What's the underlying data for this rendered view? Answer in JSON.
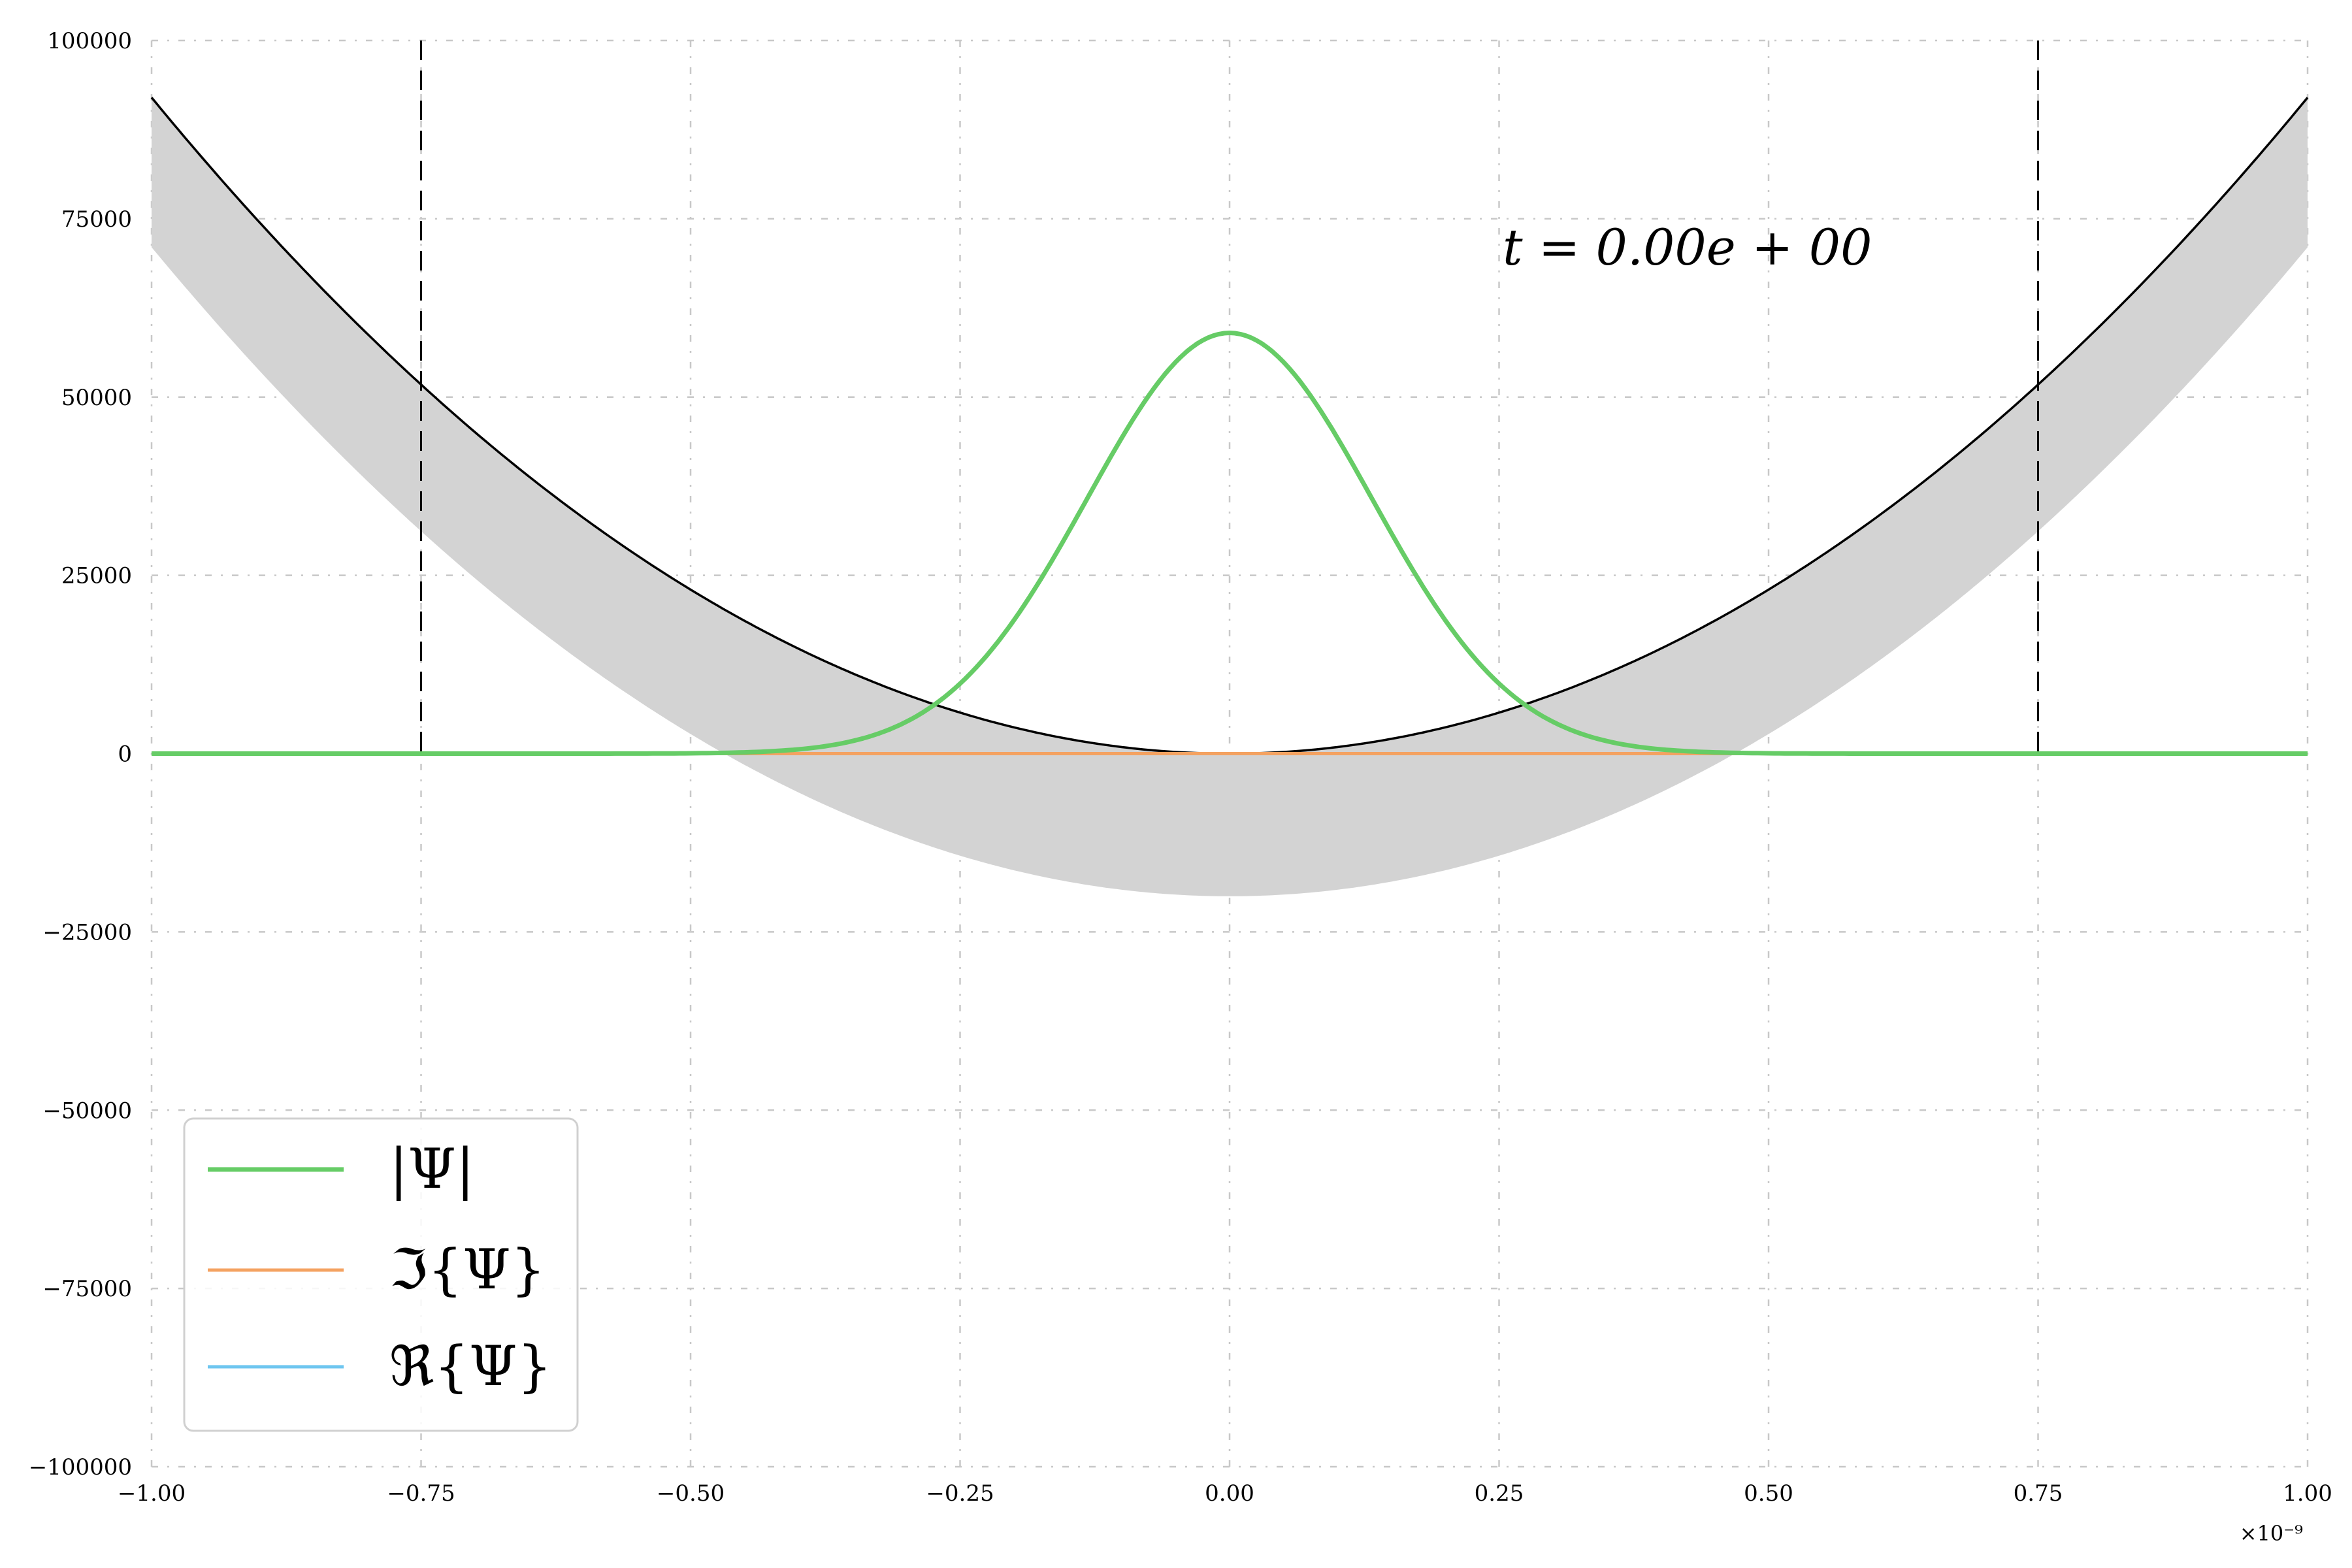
{
  "chart_data": {
    "type": "line",
    "title": "",
    "xlabel": "",
    "ylabel": "",
    "xlim": [
      -1.0,
      1.0
    ],
    "ylim": [
      -100000,
      100000
    ],
    "x_offset_label": "×10⁻⁹",
    "x_ticks": [
      -1.0,
      -0.75,
      -0.5,
      -0.25,
      0.0,
      0.25,
      0.5,
      0.75,
      1.0
    ],
    "x_tick_labels": [
      "−1.00",
      "−0.75",
      "−0.50",
      "−0.25",
      "0.00",
      "0.25",
      "0.50",
      "0.75",
      "1.00"
    ],
    "y_ticks": [
      100000,
      75000,
      50000,
      25000,
      0,
      -25000,
      -50000,
      -75000,
      -100000
    ],
    "y_tick_labels": [
      "100000",
      "75000",
      "50000",
      "25000",
      "0",
      "−25000",
      "−50000",
      "−75000",
      "−100000"
    ],
    "grid": true,
    "legend_position": "bottom-left",
    "annotation": "t = 0.00e + 00",
    "potential": {
      "kind": "parabola",
      "coefficient": 92000,
      "color": "#000000"
    },
    "band": {
      "kind": "parabola-band",
      "upper_coefficient": 92000,
      "lower_coefficient": 91000,
      "lower_offset": -20000,
      "color": "#d3d3d3"
    },
    "boundaries": {
      "x": [
        -0.75,
        0.75
      ],
      "color": "#000000"
    },
    "series": [
      {
        "name": "|Ψ|",
        "kind": "gaussian",
        "amplitude": 59000,
        "center": 0.0,
        "sigma": 0.132,
        "color": "#66cc66"
      },
      {
        "name": "ℑ{Ψ}",
        "kind": "zero",
        "color": "#f4a261"
      },
      {
        "name": "ℜ{Ψ}",
        "kind": "zero",
        "color": "#6ec6f0"
      }
    ]
  }
}
